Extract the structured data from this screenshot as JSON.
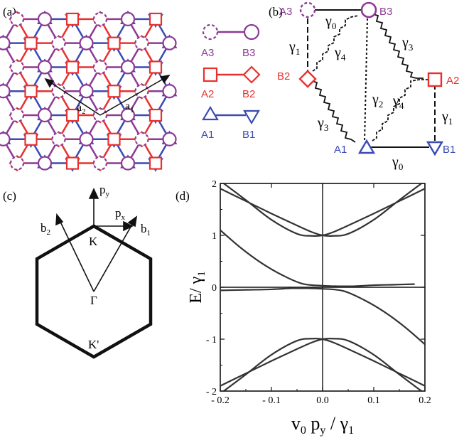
{
  "colors": {
    "red": "#e8312f",
    "blue": "#3b4bb0",
    "purple": "#8c3a96",
    "black": "#111111"
  },
  "panel_a": {
    "label": "(a)",
    "vec_a1": "a",
    "vec_a1_sub": "1",
    "vec_a2": "a",
    "vec_a2_sub": "2",
    "legend": [
      {
        "left": "A3",
        "right": "B3"
      },
      {
        "left": "A2",
        "right": "B2"
      },
      {
        "left": "A1",
        "right": "B1"
      }
    ]
  },
  "panel_b": {
    "label": "(b)",
    "sites": {
      "A1": "A1",
      "B1": "B1",
      "A2": "A2",
      "B2": "B2",
      "A3": "A3",
      "B3": "B3"
    },
    "hoppings": {
      "gamma": "γ",
      "s0": "0",
      "s1": "1",
      "s2": "2",
      "s3": "3",
      "s4": "4"
    }
  },
  "panel_c": {
    "label": "(c)",
    "py": "p",
    "py_sub": "y",
    "px": "p",
    "px_sub": "x",
    "b1": "b",
    "b1_sub": "1",
    "b2": "b",
    "b2_sub": "2",
    "K": "K",
    "Kp": "K'",
    "Gamma": "Γ"
  },
  "panel_d": {
    "label": "(d)",
    "ylabel": "E/ γ",
    "ylabel_sub": "1",
    "xlabel_main": "v",
    "xlabel_sub0": "0",
    "xlabel_p": " p",
    "xlabel_suby": "y",
    "xlabel_div": " / γ",
    "xlabel_sub1": "1"
  },
  "chart_data": {
    "type": "line",
    "xlabel": "v0 py / γ1",
    "ylabel": "E/ γ1",
    "xlim": [
      -0.2,
      0.2
    ],
    "ylim": [
      -2,
      2
    ],
    "xticks": [
      -0.2,
      -0.1,
      0.0,
      0.1,
      0.2
    ],
    "xtick_labels": [
      "- 0.2",
      "- 0.1",
      "0.0",
      "0.1",
      "0.2"
    ],
    "yticks": [
      -2,
      -1,
      0,
      1,
      2
    ],
    "ytick_labels": [
      "- 2",
      "- 1",
      "0",
      "1",
      "2"
    ],
    "zero_lines": true,
    "series": [
      {
        "x": [
          -0.2,
          -0.15,
          -0.1,
          -0.05,
          -0.02,
          0,
          0.02,
          0.05,
          0.1,
          0.15,
          0.2
        ],
        "y": [
          1.9,
          1.66,
          1.42,
          1.19,
          1.06,
          1.0,
          0.99,
          1.03,
          1.3,
          1.68,
          2.05
        ]
      },
      {
        "x": [
          -0.2,
          -0.15,
          -0.1,
          -0.05,
          -0.02,
          0,
          0.02,
          0.05,
          0.1,
          0.15,
          0.2
        ],
        "y": [
          2.05,
          1.68,
          1.3,
          1.03,
          0.99,
          1.0,
          1.06,
          1.19,
          1.42,
          1.66,
          1.9
        ]
      },
      {
        "x": [
          -0.2,
          -0.16,
          -0.12,
          -0.08,
          -0.04,
          0,
          0.03,
          0.06,
          0.1,
          0.14,
          0.18
        ],
        "y": [
          1.1,
          0.76,
          0.47,
          0.24,
          0.07,
          0.03,
          0.02,
          0.02,
          0.04,
          0.05,
          0.06
        ]
      },
      {
        "x": [
          -0.2,
          -0.15,
          -0.1,
          -0.06,
          -0.03,
          0,
          0.04,
          0.08,
          0.12,
          0.16,
          0.2
        ],
        "y": [
          -0.06,
          -0.05,
          -0.04,
          -0.02,
          -0.02,
          -0.03,
          -0.07,
          -0.24,
          -0.47,
          -0.76,
          -1.1
        ]
      },
      {
        "x": [
          -0.2,
          -0.15,
          -0.1,
          -0.05,
          -0.02,
          0,
          0.02,
          0.05,
          0.1,
          0.15,
          0.2
        ],
        "y": [
          -1.9,
          -1.66,
          -1.42,
          -1.19,
          -1.06,
          -1.0,
          -0.99,
          -1.03,
          -1.3,
          -1.68,
          -2.05
        ]
      },
      {
        "x": [
          -0.2,
          -0.15,
          -0.1,
          -0.05,
          -0.02,
          0,
          0.02,
          0.05,
          0.1,
          0.15,
          0.2
        ],
        "y": [
          -2.05,
          -1.68,
          -1.3,
          -1.03,
          -0.99,
          -1.0,
          -1.06,
          -1.19,
          -1.42,
          -1.66,
          -1.9
        ]
      }
    ]
  }
}
